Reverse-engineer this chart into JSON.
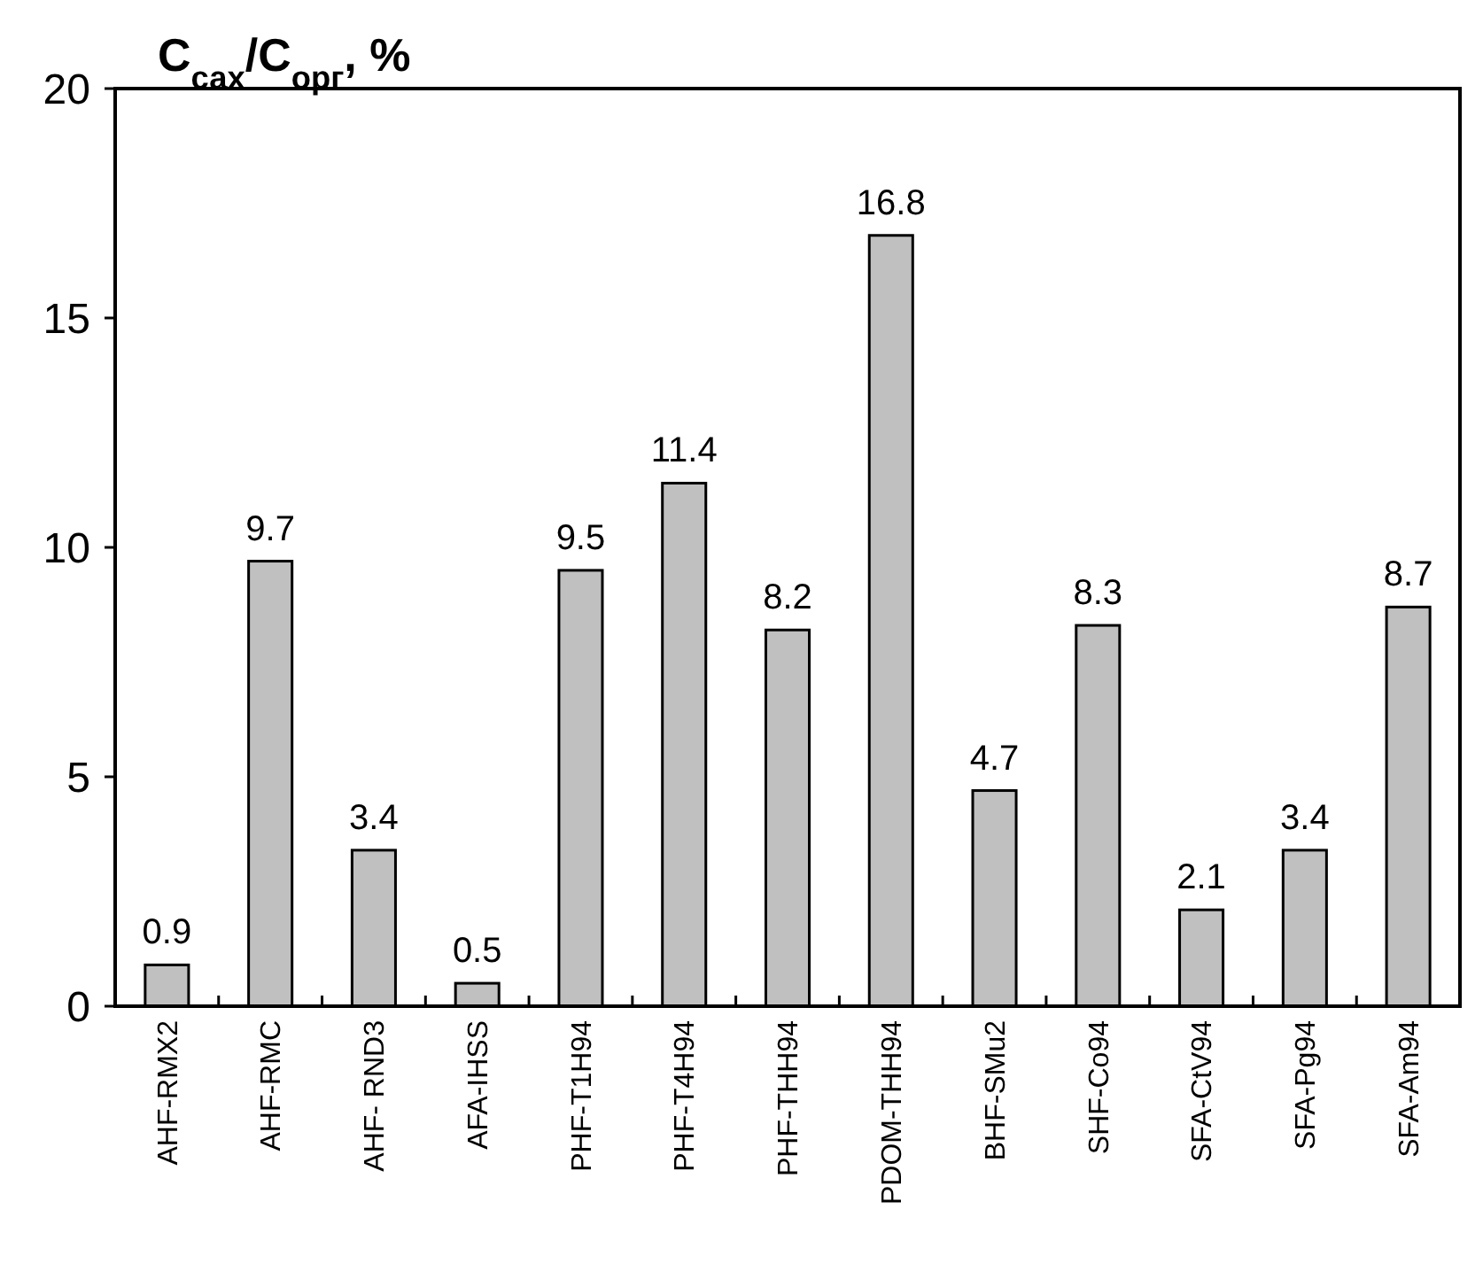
{
  "chart_data": {
    "type": "bar",
    "title": "С$_{сах}$/С$_{орг}$, %",
    "categories": [
      "AHF-RMX2",
      "AHF-RMC",
      "AHF- RND3",
      "AFA-IHSS",
      "PHF-T1H94",
      "PHF-T4H94",
      "PHF-THH94",
      "PDOM-THH94",
      "BHF-SMu2",
      "SHF-Co94",
      "SFA-CtV94",
      "SFA-Pg94",
      "SFA-Am94"
    ],
    "values": [
      0.9,
      9.7,
      3.4,
      0.5,
      9.5,
      11.4,
      8.2,
      16.8,
      4.7,
      8.3,
      2.1,
      3.4,
      8.7
    ],
    "color": "#c0c0c0",
    "ylim": [
      0,
      20
    ],
    "yticks": [
      0,
      5,
      10,
      15,
      20
    ],
    "grid": false,
    "data_labels": true
  }
}
